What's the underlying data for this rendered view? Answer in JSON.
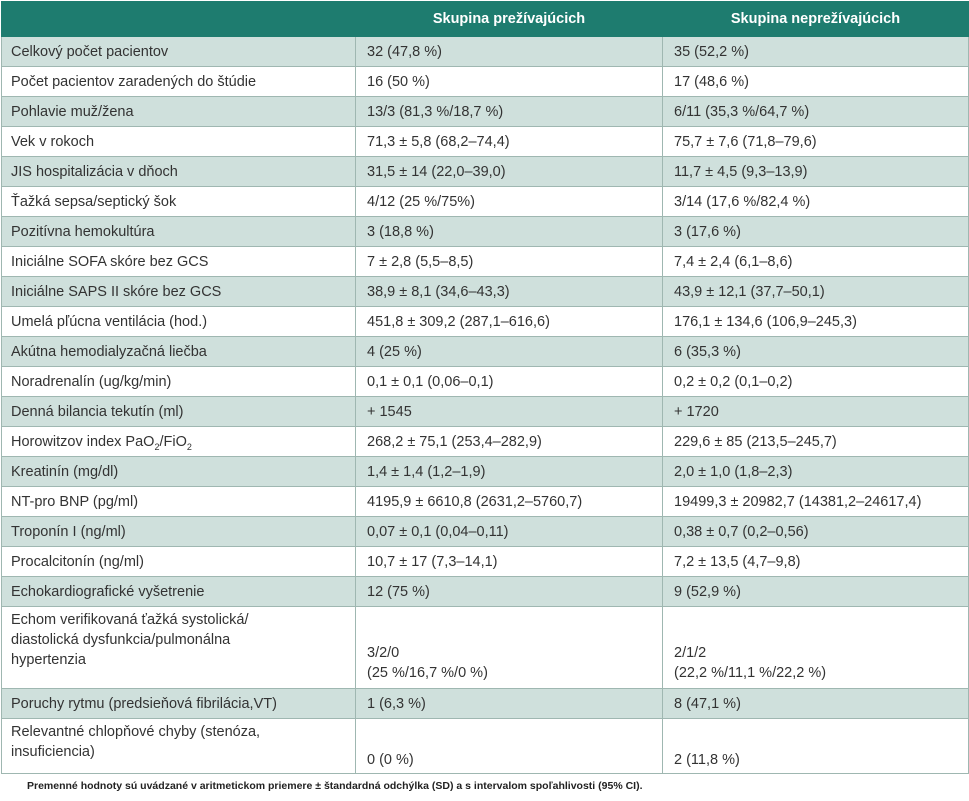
{
  "header": {
    "col1": "",
    "col2": "Skupina prežívajúcich",
    "col3": "Skupina neprežívajúcich"
  },
  "rows": [
    {
      "label": "Celkový počet pacientov",
      "a": "32 (47,8 %)",
      "b": "35 (52,2 %)"
    },
    {
      "label": "Počet pacientov zaradených do štúdie",
      "a": "16 (50 %)",
      "b": "17 (48,6 %)"
    },
    {
      "label": "Pohlavie muž/žena",
      "a": "13/3 (81,3 %/18,7 %)",
      "b": "6/11 (35,3 %/64,7 %)"
    },
    {
      "label": "Vek v rokoch",
      "a": "71,3 ± 5,8 (68,2–74,4)",
      "b": "75,7 ± 7,6 (71,8–79,6)"
    },
    {
      "label": "JIS hospitalizácia v dňoch",
      "a": "31,5 ± 14 (22,0–39,0)",
      "b": "11,7 ± 4,5 (9,3–13,9)"
    },
    {
      "label": "Ťažká sepsa/septický šok",
      "a": "4/12 (25 %/75%)",
      "b": "3/14 (17,6 %/82,4 %)"
    },
    {
      "label": "Pozitívna hemokultúra",
      "a": "3 (18,8 %)",
      "b": "3 (17,6 %)"
    },
    {
      "label": "Iniciálne SOFA skóre bez GCS",
      "a": "7 ± 2,8 (5,5–8,5)",
      "b": "7,4 ± 2,4 (6,1–8,6)"
    },
    {
      "label": "Iniciálne SAPS II skóre bez GCS",
      "a": "38,9 ± 8,1 (34,6–43,3)",
      "b": "43,9 ± 12,1 (37,7–50,1)"
    },
    {
      "label": "Umelá pľúcna ventilácia (hod.)",
      "a": "451,8 ± 309,2 (287,1–616,6)",
      "b": "176,1 ± 134,6 (106,9–245,3)"
    },
    {
      "label": "Akútna hemodialyzačná liečba",
      "a": "4 (25 %)",
      "b": "6 (35,3 %)"
    },
    {
      "label": "Noradrenalín (ug/kg/min)",
      "a": "0,1 ± 0,1 (0,06–0,1)",
      "b": "0,2 ± 0,2 (0,1–0,2)"
    },
    {
      "label": "Denná bilancia tekutín (ml)",
      "a": "+ 1545",
      "b": "+ 1720"
    },
    {
      "label_pre": "Horowitzov index PaO",
      "label_sub1": "2",
      "label_mid": "/FiO",
      "label_sub2": "2",
      "a": "268,2 ± 75,1 (253,4–282,9)",
      "b": "229,6 ± 85 (213,5–245,7)"
    },
    {
      "label": "Kreatinín (mg/dl)",
      "a": "1,4 ± 1,4 (1,2–1,9)",
      "b": "2,0 ± 1,0 (1,8–2,3)"
    },
    {
      "label": "NT-pro BNP (pg/ml)",
      "a": "4195,9 ± 6610,8 (2631,2–5760,7)",
      "b": "19499,3 ± 20982,7 (14381,2–24617,4)"
    },
    {
      "label": "Troponín I (ng/ml)",
      "a": "0,07 ± 0,1 (0,04–0,11)",
      "b": "0,38 ± 0,7 (0,2–0,56)"
    },
    {
      "label": "Procalcitonín (ng/ml)",
      "a": "10,7 ± 17 (7,3–14,1)",
      "b": "7,2 ± 13,5 (4,7–9,8)"
    },
    {
      "label": "Echokardiografické vyšetrenie",
      "a": "12 (75 %)",
      "b": "9 (52,9 %)"
    },
    {
      "label": "Echom verifikovaná ťažká systolická/\ndiastolická dysfunkcia/pulmonálna\nhypertenzia",
      "a": "3/2/0\n(25 %/16,7 %/0 %)",
      "b": "2/1/2\n(22,2 %/11,1 %/22,2 %)"
    },
    {
      "label": "Poruchy rytmu (predsieňová fibrilácia,VT)",
      "a": "1 (6,3 %)",
      "b": "8 (47,1 %)"
    },
    {
      "label": "Relevantné chlopňové chyby (stenóza,\ninsuficiencia)",
      "a": "0 (0 %)",
      "b": "2 (11,8 %)"
    }
  ],
  "footnote": "Premenné hodnoty sú uvádzané v aritmetickom priemere ± štandardná odchýlka (SD) a s intervalom spoľahlivosti (95% CI)."
}
